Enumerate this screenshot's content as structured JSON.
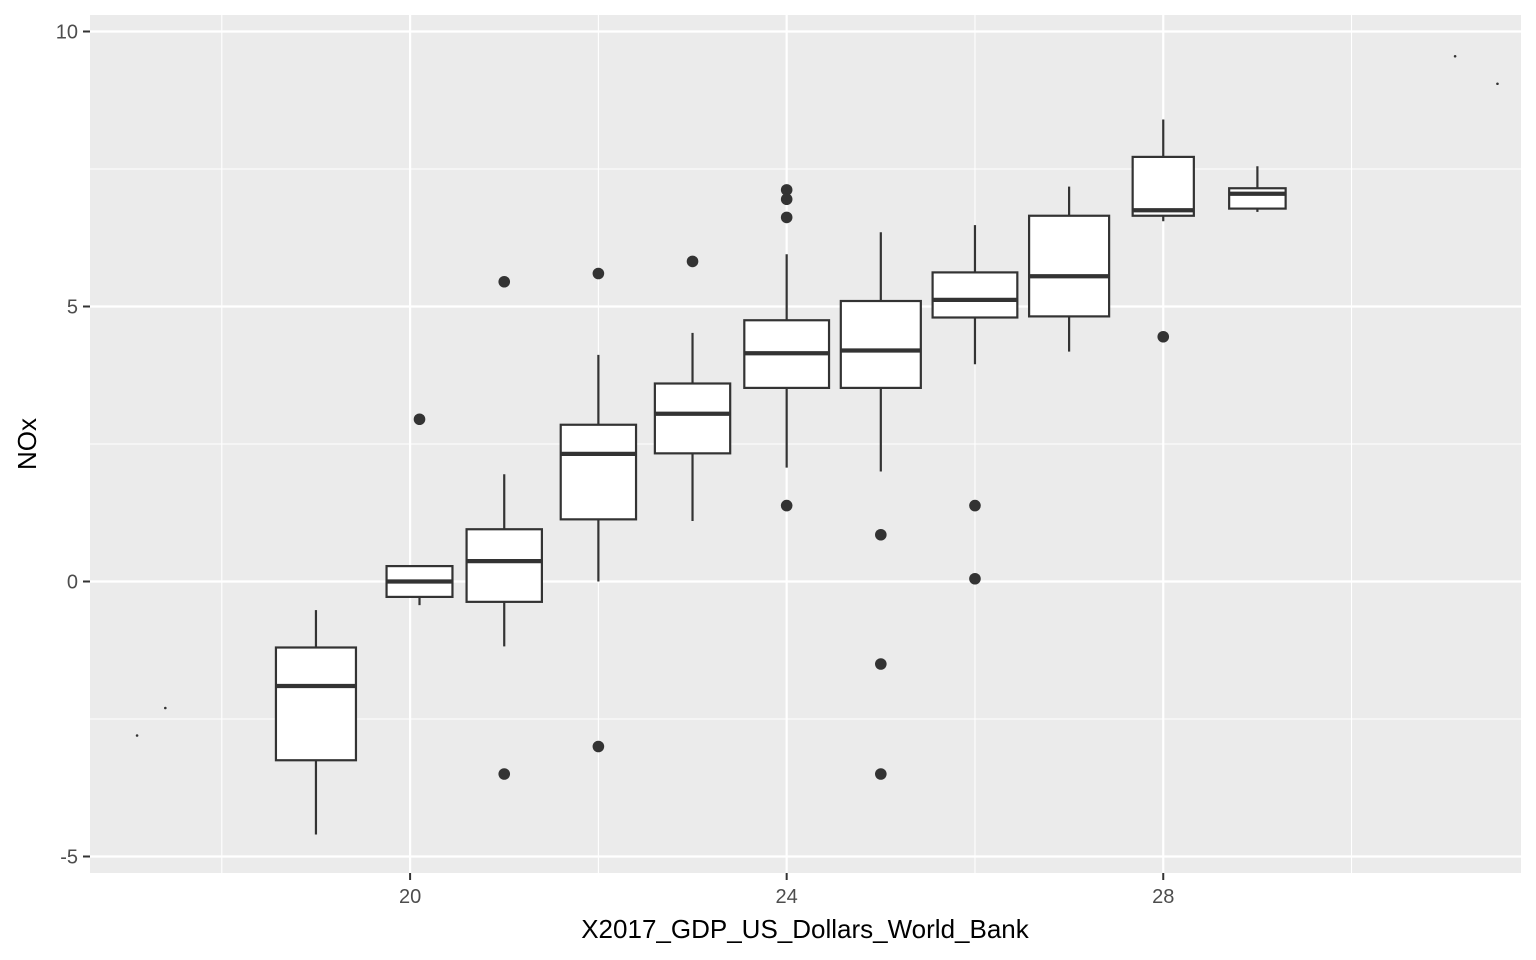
{
  "chart_data": {
    "type": "boxplot",
    "title": "",
    "xlabel": "X2017_GDP_US_Dollars_World_Bank",
    "ylabel": "NOx",
    "xlim": [
      16.6,
      31.8
    ],
    "ylim": [
      -5.3,
      10.3
    ],
    "x_ticks": [
      20,
      24,
      28
    ],
    "y_ticks": [
      -5,
      0,
      5,
      10
    ],
    "grid": true,
    "legend": "none",
    "colors": {
      "panel": "#ebebeb",
      "grid": "#ffffff",
      "box_fill": "#ffffff",
      "box_line": "#333333"
    },
    "boxes": [
      {
        "x": 19,
        "width": 0.85,
        "lower_whisker": -4.6,
        "q1": -3.25,
        "median": -1.9,
        "q3": -1.2,
        "upper_whisker": -0.52,
        "outliers": []
      },
      {
        "x": 20.1,
        "width": 0.7,
        "lower_whisker": -0.43,
        "q1": -0.28,
        "median": 0.0,
        "q3": 0.28,
        "upper_whisker": 0.28,
        "outliers": [
          2.95
        ]
      },
      {
        "x": 21,
        "width": 0.8,
        "lower_whisker": -1.18,
        "q1": -0.37,
        "median": 0.37,
        "q3": 0.95,
        "upper_whisker": 1.95,
        "outliers": [
          5.45,
          -3.5
        ]
      },
      {
        "x": 22,
        "width": 0.8,
        "lower_whisker": 0.0,
        "q1": 1.13,
        "median": 2.32,
        "q3": 2.85,
        "upper_whisker": 4.12,
        "outliers": [
          5.6,
          -3.0
        ]
      },
      {
        "x": 23,
        "width": 0.8,
        "lower_whisker": 1.1,
        "q1": 2.33,
        "median": 3.05,
        "q3": 3.6,
        "upper_whisker": 4.52,
        "outliers": [
          5.82
        ]
      },
      {
        "x": 24,
        "width": 0.9,
        "lower_whisker": 2.07,
        "q1": 3.52,
        "median": 4.15,
        "q3": 4.75,
        "upper_whisker": 5.95,
        "outliers": [
          7.12,
          6.95,
          6.62,
          1.38
        ]
      },
      {
        "x": 25,
        "width": 0.85,
        "lower_whisker": 2.0,
        "q1": 3.52,
        "median": 4.2,
        "q3": 5.1,
        "upper_whisker": 6.35,
        "outliers": [
          0.85,
          -1.5,
          -3.5
        ]
      },
      {
        "x": 26,
        "width": 0.9,
        "lower_whisker": 3.95,
        "q1": 4.8,
        "median": 5.12,
        "q3": 5.62,
        "upper_whisker": 6.48,
        "outliers": [
          1.38,
          0.05
        ]
      },
      {
        "x": 27,
        "width": 0.85,
        "lower_whisker": 4.18,
        "q1": 4.82,
        "median": 5.55,
        "q3": 6.65,
        "upper_whisker": 7.18,
        "outliers": []
      },
      {
        "x": 28,
        "width": 0.65,
        "lower_whisker": 6.55,
        "q1": 6.65,
        "median": 6.75,
        "q3": 7.72,
        "upper_whisker": 8.4,
        "outliers": [
          4.45
        ]
      },
      {
        "x": 29,
        "width": 0.6,
        "lower_whisker": 6.72,
        "q1": 6.78,
        "median": 7.05,
        "q3": 7.15,
        "upper_whisker": 7.55,
        "outliers": []
      }
    ],
    "single_points": [
      {
        "x": 17.1,
        "y": -2.8
      },
      {
        "x": 17.4,
        "y": -2.3
      },
      {
        "x": 31.1,
        "y": 9.55
      },
      {
        "x": 31.55,
        "y": 9.05
      }
    ]
  }
}
